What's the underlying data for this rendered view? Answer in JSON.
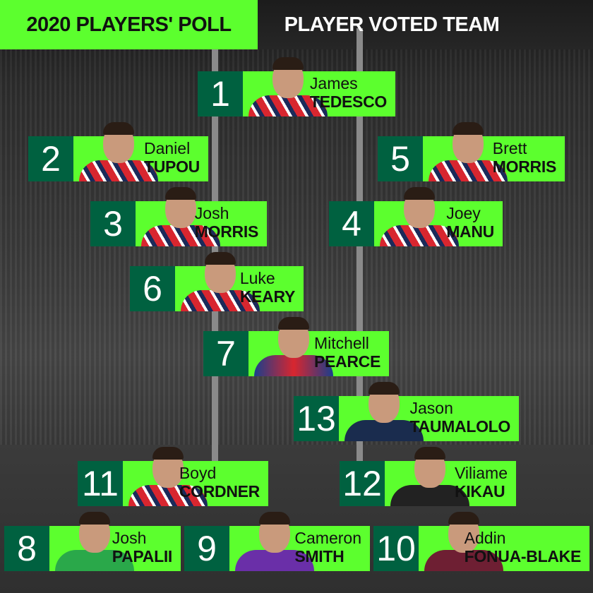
{
  "header": {
    "left_title": "2020 PLAYERS' POLL",
    "right_title": "PLAYER VOTED TEAM"
  },
  "colors": {
    "accent": "#5cff2e",
    "number_box": "#006140"
  },
  "players": [
    {
      "number": "1",
      "first": "James",
      "last": "TEDESCO",
      "jersey": "roosters"
    },
    {
      "number": "2",
      "first": "Daniel",
      "last": "TUPOU",
      "jersey": "roosters"
    },
    {
      "number": "5",
      "first": "Brett",
      "last": "MORRIS",
      "jersey": "roosters"
    },
    {
      "number": "3",
      "first": "Josh",
      "last": "MORRIS",
      "jersey": "roosters"
    },
    {
      "number": "4",
      "first": "Joey",
      "last": "MANU",
      "jersey": "roosters"
    },
    {
      "number": "6",
      "first": "Luke",
      "last": "KEARY",
      "jersey": "roosters"
    },
    {
      "number": "7",
      "first": "Mitchell",
      "last": "PEARCE",
      "jersey": "knights"
    },
    {
      "number": "13",
      "first": "Jason",
      "last": "TAUMALOLO",
      "jersey": "cowboys"
    },
    {
      "number": "11",
      "first": "Boyd",
      "last": "CORDNER",
      "jersey": "roosters"
    },
    {
      "number": "12",
      "first": "Viliame",
      "last": "KIKAU",
      "jersey": "panthers"
    },
    {
      "number": "8",
      "first": "Josh",
      "last": "PAPALII",
      "jersey": "raiders"
    },
    {
      "number": "9",
      "first": "Cameron",
      "last": "SMITH",
      "jersey": "storm"
    },
    {
      "number": "10",
      "first": "Addin",
      "last": "FONUA-BLAKE",
      "jersey": "sea-eagles"
    }
  ]
}
